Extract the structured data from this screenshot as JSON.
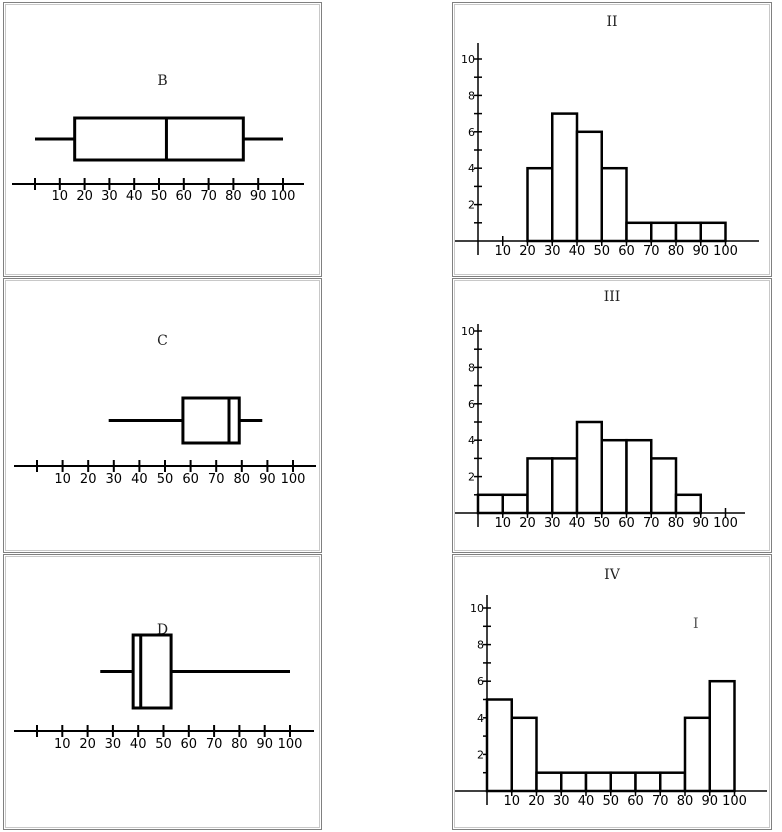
{
  "chart_data": [
    {
      "type": "box",
      "title": "B",
      "xticks": [
        10,
        20,
        30,
        40,
        50,
        60,
        70,
        80,
        90,
        100
      ],
      "whisker_low": 0,
      "q1": 16,
      "median": 53,
      "q3": 84,
      "whisker_high": 100,
      "xlim": [
        0,
        108
      ]
    },
    {
      "type": "box",
      "title": "C",
      "xticks": [
        10,
        20,
        30,
        40,
        50,
        60,
        70,
        80,
        90,
        100
      ],
      "whisker_low": 28,
      "q1": 57,
      "median": 75,
      "q3": 79,
      "whisker_high": 88,
      "xlim": [
        0,
        108
      ]
    },
    {
      "type": "box",
      "title": "D",
      "xticks": [
        10,
        20,
        30,
        40,
        50,
        60,
        70,
        80,
        90,
        100
      ],
      "whisker_low": 25,
      "q1": 38,
      "median": 41,
      "q3": 53,
      "whisker_high": 100,
      "xlim": [
        0,
        108
      ]
    },
    {
      "type": "bar",
      "title": "II",
      "bin_edges": [
        20,
        30,
        40,
        50,
        60,
        70,
        80,
        90,
        100
      ],
      "values": [
        4,
        7,
        6,
        4,
        1,
        1,
        1,
        1
      ],
      "xticks": [
        10,
        20,
        30,
        40,
        50,
        60,
        70,
        80,
        90,
        100
      ],
      "yticks": [
        2,
        4,
        6,
        8,
        10
      ],
      "ylim": [
        0,
        11
      ]
    },
    {
      "type": "bar",
      "title": "III",
      "bin_edges": [
        0,
        10,
        20,
        30,
        40,
        50,
        60,
        70,
        80,
        90
      ],
      "values": [
        1,
        1,
        3,
        3,
        5,
        4,
        4,
        3,
        1
      ],
      "xticks": [
        10,
        20,
        30,
        40,
        50,
        60,
        70,
        80,
        90,
        100
      ],
      "yticks": [
        2,
        4,
        6,
        8,
        10
      ],
      "ylim": [
        0,
        11
      ]
    },
    {
      "type": "bar",
      "title": "IV",
      "bin_edges": [
        0,
        10,
        20,
        30,
        40,
        50,
        60,
        70,
        80,
        90,
        100
      ],
      "values": [
        5,
        4,
        1,
        1,
        1,
        1,
        1,
        1,
        4,
        6
      ],
      "xticks": [
        10,
        20,
        30,
        40,
        50,
        60,
        70,
        80,
        90,
        100
      ],
      "yticks": [
        2,
        4,
        6,
        8,
        10
      ],
      "ylim": [
        0,
        11
      ],
      "stray_mark": "I"
    }
  ]
}
